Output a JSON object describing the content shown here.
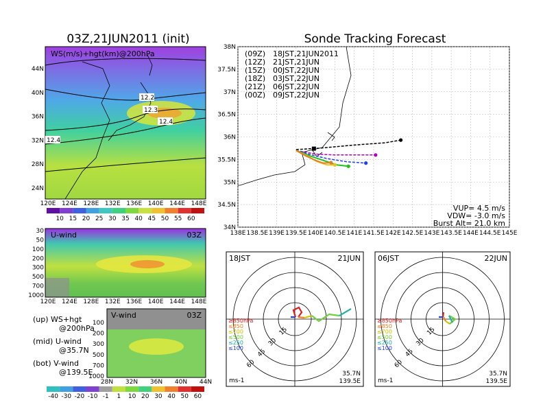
{
  "left_title": "03Z,21JUN2011 (init)",
  "right_title": "Sonde Tracking Forecast",
  "colors": {
    "purple": "#a020f0",
    "teal": "#1fb0a8",
    "green": "#6fd03a",
    "yellow": "#d8e000",
    "orange": "#f08020",
    "red": "#e02020",
    "black": "#000000",
    "magenta": "#b000c0",
    "blue": "#2040f0",
    "lime": "#20c020",
    "gold": "#f0c020",
    "darkorange": "#e08020"
  },
  "chart_data": [
    {
      "type": "heatmap",
      "panel": "ws-hgt-map",
      "title": "WS(m/s)+hgt(km)@200hPa",
      "time_label": "",
      "x_ticks": [
        "120E",
        "124E",
        "128E",
        "132E",
        "136E",
        "140E",
        "144E",
        "148E"
      ],
      "y_ticks": [
        "24N",
        "28N",
        "32N",
        "36N",
        "40N",
        "44N"
      ],
      "contour_labels": [
        "12.2",
        "12.3",
        "12.4",
        "12.4"
      ],
      "colorbar_labels": [
        "10",
        "15",
        "20",
        "25",
        "30",
        "35",
        "40",
        "45",
        "50",
        "55",
        "60"
      ]
    },
    {
      "type": "heatmap",
      "panel": "u-wind-section",
      "label": "U-wind",
      "time_label": "03Z",
      "x_ticks": [
        "120E",
        "124E",
        "128E",
        "132E",
        "136E",
        "140E",
        "144E",
        "148E"
      ],
      "y_ticks": [
        "30",
        "50",
        "100",
        "200",
        "300",
        "500",
        "700",
        "1000"
      ]
    },
    {
      "type": "heatmap",
      "panel": "v-wind-section",
      "label": "V-wind",
      "time_label": "03Z",
      "x_ticks": [
        "28N",
        "32N",
        "36N",
        "40N",
        "44N"
      ],
      "y_ticks": [
        "100",
        "200",
        "300",
        "500",
        "700",
        "1000"
      ],
      "colorbar_labels": [
        "-40",
        "-30",
        "-20",
        "-10",
        "-1",
        "1",
        "10",
        "20",
        "30",
        "40",
        "50",
        "60"
      ]
    },
    {
      "type": "line",
      "panel": "trajectory-map",
      "x_ticks": [
        "138E",
        "138.5E",
        "139E",
        "139.5E",
        "140E",
        "140.5E",
        "141E",
        "141.5E",
        "142E",
        "142.5E",
        "143E",
        "143.5E",
        "144E",
        "144.5E",
        "145E"
      ],
      "y_ticks": [
        "34N",
        "34.5N",
        "35N",
        "35.5N",
        "36N",
        "36.5N",
        "37N",
        "37.5N",
        "38N"
      ],
      "xlim": [
        138,
        145
      ],
      "ylim": [
        34,
        38
      ],
      "legend": [
        {
          "z": "(09Z)",
          "jst": "18JST,21JUN2011",
          "color": "#000000"
        },
        {
          "z": "(12Z)",
          "jst": "21JST,21JUN",
          "color": "#b000c0"
        },
        {
          "z": "(15Z)",
          "jst": "00JST,22JUN",
          "color": "#2040f0"
        },
        {
          "z": "(18Z)",
          "jst": "03JST,22JUN",
          "color": "#20c020"
        },
        {
          "z": "(21Z)",
          "jst": "06JST,22JUN",
          "color": "#f0c020"
        },
        {
          "z": "(00Z)",
          "jst": "09JST,22JUN",
          "color": "#e08020"
        }
      ],
      "series": [
        {
          "color": "#000000",
          "x": [
            139.5,
            140.1,
            141.0,
            141.8,
            142.2
          ],
          "y": [
            35.72,
            35.75,
            35.82,
            35.87,
            35.93
          ]
        },
        {
          "color": "#b000c0",
          "x": [
            139.5,
            140.0,
            140.5,
            141.2,
            141.55
          ],
          "y": [
            35.7,
            35.62,
            35.6,
            35.6,
            35.6
          ]
        },
        {
          "color": "#2040f0",
          "x": [
            139.5,
            139.9,
            140.3,
            140.8,
            141.3
          ],
          "y": [
            35.7,
            35.6,
            35.52,
            35.45,
            35.42
          ]
        },
        {
          "color": "#20c020",
          "x": [
            139.5,
            139.85,
            140.2,
            140.55,
            140.85
          ],
          "y": [
            35.7,
            35.58,
            35.48,
            35.38,
            35.35
          ]
        },
        {
          "color": "#f0c020",
          "x": [
            139.5,
            139.8,
            140.05,
            140.3,
            140.5
          ],
          "y": [
            35.7,
            35.57,
            35.45,
            35.38,
            35.38
          ]
        },
        {
          "color": "#e08020",
          "x": [
            139.5,
            139.75,
            140.0,
            140.2,
            140.4
          ],
          "y": [
            35.7,
            35.58,
            35.48,
            35.42,
            35.43
          ]
        }
      ],
      "info": [
        "VUP= 4.5 m/s",
        "VDW= -3.0 m/s",
        "Burst Alt= 21.0 km"
      ]
    },
    {
      "type": "line",
      "panel": "hodograph-1",
      "time_label": "18JST",
      "date_label": "21JUN",
      "ring_labels": [
        "15",
        "30",
        "45",
        "60"
      ],
      "levels": [
        "≥850hPa",
        "≤850",
        "≤700",
        "≤500",
        "≤250",
        "≤100"
      ],
      "location": [
        "35.7N",
        "139.5E"
      ],
      "unit": "ms-1"
    },
    {
      "type": "line",
      "panel": "hodograph-2",
      "time_label": "06JST",
      "date_label": "22JUN",
      "ring_labels": [
        "15",
        "30",
        "45",
        "60"
      ],
      "levels": [
        "≥850hPa",
        "≤850",
        "≤700",
        "≤500",
        "≤250",
        "≤100"
      ],
      "location": [
        "35.7N",
        "139.5E"
      ],
      "unit": "ms-1"
    }
  ],
  "notes": [
    {
      "a": "(up) WS+hgt",
      "b": "@200hPa"
    },
    {
      "a": "(mid) U-wind",
      "b": "@35.7N"
    },
    {
      "a": "(bot) V-wind",
      "b": "@139.5E"
    }
  ]
}
